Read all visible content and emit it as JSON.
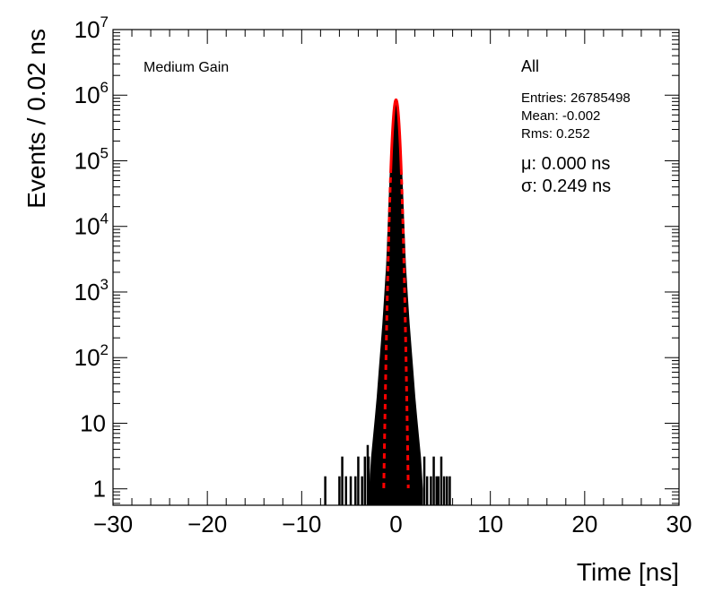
{
  "chart_data": {
    "type": "histogram",
    "xlabel": "Time [ns]",
    "ylabel": "Events / 0.02 ns",
    "xlim": [
      -30,
      30
    ],
    "ylim_log10": [
      -0.25,
      7
    ],
    "y_scale": "log",
    "x_ticks": [
      "−30",
      "−20",
      "−10",
      "0",
      "10",
      "20",
      "30"
    ],
    "x_tick_values": [
      -30,
      -20,
      -10,
      0,
      10,
      20,
      30
    ],
    "y_ticks": [
      {
        "value": 1,
        "base": "1",
        "exp": ""
      },
      {
        "value": 10,
        "base": "10",
        "exp": ""
      },
      {
        "value": 100,
        "base": "10",
        "exp": "2"
      },
      {
        "value": 1000,
        "base": "10",
        "exp": "3"
      },
      {
        "value": 10000,
        "base": "10",
        "exp": "4"
      },
      {
        "value": 100000,
        "base": "10",
        "exp": "5"
      },
      {
        "value": 1000000,
        "base": "10",
        "exp": "6"
      },
      {
        "value": 10000000,
        "base": "10",
        "exp": "7"
      }
    ],
    "gain_label": "Medium Gain",
    "selection_label": "All",
    "stats": {
      "entries": "Entries: 26785498",
      "mean": "Mean: -0.002",
      "rms": "Rms: 0.252"
    },
    "fit": {
      "mu_text": "μ: 0.000 ns",
      "sigma_text": "σ: 0.249 ns",
      "mu": 0.0,
      "sigma": 0.249,
      "peak": 850000
    },
    "histogram_color": "#000000",
    "fit_color": "#ff0000",
    "fit_range": [
      -1.3,
      1.3
    ],
    "core": [
      [
        -2.8,
        1
      ],
      [
        -2.6,
        3
      ],
      [
        -2.4,
        6
      ],
      [
        -2.2,
        12
      ],
      [
        -2.0,
        25
      ],
      [
        -1.8,
        60
      ],
      [
        -1.6,
        140
      ],
      [
        -1.4,
        330
      ],
      [
        -1.2,
        900
      ],
      [
        -1.0,
        2600
      ],
      [
        -0.9,
        6000
      ],
      [
        -0.8,
        14000
      ],
      [
        -0.7,
        33000
      ],
      [
        -0.6,
        75000
      ],
      [
        -0.5,
        160000
      ],
      [
        -0.4,
        320000
      ],
      [
        -0.3,
        530000
      ],
      [
        -0.2,
        720000
      ],
      [
        -0.1,
        830000
      ],
      [
        0.0,
        850000
      ],
      [
        0.1,
        830000
      ],
      [
        0.2,
        720000
      ],
      [
        0.3,
        530000
      ],
      [
        0.4,
        320000
      ],
      [
        0.5,
        160000
      ],
      [
        0.6,
        75000
      ],
      [
        0.7,
        33000
      ],
      [
        0.8,
        14000
      ],
      [
        0.9,
        6000
      ],
      [
        1.0,
        2600
      ],
      [
        1.2,
        900
      ],
      [
        1.4,
        330
      ],
      [
        1.6,
        140
      ],
      [
        1.8,
        60
      ],
      [
        2.0,
        25
      ],
      [
        2.2,
        12
      ],
      [
        2.4,
        6
      ],
      [
        2.6,
        3
      ],
      [
        2.8,
        1
      ]
    ],
    "spikes": [
      [
        -7.5,
        1
      ],
      [
        -6.0,
        1
      ],
      [
        -5.7,
        2
      ],
      [
        -5.3,
        1
      ],
      [
        -4.8,
        1
      ],
      [
        -4.3,
        1
      ],
      [
        -4.0,
        2
      ],
      [
        -3.6,
        1
      ],
      [
        -3.3,
        2
      ],
      [
        -3.0,
        3
      ],
      [
        -2.9,
        2
      ],
      [
        3.0,
        2
      ],
      [
        3.3,
        1
      ],
      [
        3.7,
        1
      ],
      [
        4.0,
        2
      ],
      [
        4.3,
        1
      ],
      [
        4.5,
        1
      ],
      [
        4.8,
        2
      ],
      [
        5.1,
        1
      ],
      [
        5.4,
        1
      ],
      [
        5.7,
        1
      ]
    ]
  }
}
